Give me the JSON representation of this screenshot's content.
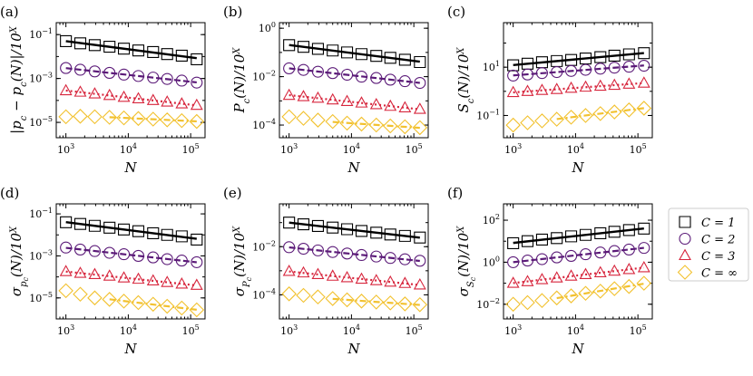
{
  "colors": {
    "C1": "#000000",
    "C2": "#5b1a78",
    "C3": "#d7263d",
    "Cinf": "#f2c12e"
  },
  "legend": {
    "placement": "right",
    "entries": [
      {
        "key": "C1",
        "label": "C = 1",
        "marker": "square"
      },
      {
        "key": "C2",
        "label": "C = 2",
        "marker": "circle"
      },
      {
        "key": "C3",
        "label": "C = 3",
        "marker": "triangle"
      },
      {
        "key": "Cinf",
        "label": "C = ∞",
        "marker": "diamond"
      }
    ]
  },
  "chart_data": [
    {
      "type": "scatter",
      "panel_label": "(a)",
      "ylabel": "|p_c − p_c(N)|/10^X",
      "xlabel": "N",
      "xscale": "log",
      "yscale": "log",
      "xlim": [
        700,
        170000
      ],
      "ylim": [
        2e-06,
        0.35
      ],
      "xticks": [
        1000,
        10000,
        100000
      ],
      "xtick_labels": [
        "10^3",
        "10^4",
        "10^5"
      ],
      "yticks": [
        0.1,
        0.001,
        1e-05
      ],
      "ytick_labels": [
        "10^-1",
        "10^-3",
        "10^-5"
      ],
      "x": [
        1000,
        1700,
        2900,
        5000,
        8500,
        14500,
        25000,
        42000,
        72000,
        125000
      ],
      "series": [
        {
          "key": "C1",
          "values": [
            0.05,
            0.04,
            0.033,
            0.028,
            0.023,
            0.019,
            0.016,
            0.013,
            0.011,
            0.0075
          ],
          "fit": true,
          "fit_style": "solid"
        },
        {
          "key": "C2",
          "values": [
            0.003,
            0.0025,
            0.0021,
            0.0018,
            0.0015,
            0.0013,
            0.0011,
            0.00095,
            0.0008,
            0.00065
          ],
          "fit": true,
          "fit_style": "dashed"
        },
        {
          "key": "C3",
          "values": [
            0.00028,
            0.00024,
            0.0002,
            0.00017,
            0.00014,
            0.00012,
            0.0001,
            8.5e-05,
            7e-05,
            6e-05
          ],
          "fit": true,
          "fit_style": "dotted"
        },
        {
          "key": "Cinf",
          "values": [
            1.8e-05,
            1.9e-05,
            1.8e-05,
            1.7e-05,
            1.6e-05,
            1.5e-05,
            1.4e-05,
            1.3e-05,
            1.2e-05,
            1.1e-05
          ],
          "fit": true,
          "fit_style": "dashdot",
          "fit_from": 5000
        }
      ]
    },
    {
      "type": "scatter",
      "panel_label": "(b)",
      "ylabel": "P_c(N)/10^X",
      "xlabel": "N",
      "xscale": "log",
      "yscale": "log",
      "xlim": [
        700,
        170000
      ],
      "ylim": [
        3e-05,
        1.7
      ],
      "xticks": [
        1000,
        10000,
        100000
      ],
      "xtick_labels": [
        "10^3",
        "10^4",
        "10^5"
      ],
      "yticks": [
        1,
        0.01,
        0.0001
      ],
      "ytick_labels": [
        "10^0",
        "10^-2",
        "10^-4"
      ],
      "x": [
        1000,
        1700,
        2900,
        5000,
        8500,
        14500,
        25000,
        42000,
        72000,
        125000
      ],
      "series": [
        {
          "key": "C1",
          "values": [
            0.2,
            0.17,
            0.14,
            0.12,
            0.1,
            0.085,
            0.072,
            0.06,
            0.05,
            0.04
          ],
          "fit": true,
          "fit_style": "solid"
        },
        {
          "key": "C2",
          "values": [
            0.022,
            0.019,
            0.016,
            0.014,
            0.012,
            0.01,
            0.0088,
            0.0075,
            0.0065,
            0.0055
          ],
          "fit": true,
          "fit_style": "dashed"
        },
        {
          "key": "C3",
          "values": [
            0.0017,
            0.0015,
            0.0013,
            0.0011,
            0.00095,
            0.00082,
            0.0007,
            0.0006,
            0.00052,
            0.00045
          ],
          "fit": true,
          "fit_style": "dotted"
        },
        {
          "key": "Cinf",
          "values": [
            0.00022,
            0.00019,
            0.00016,
            0.00014,
            0.00012,
            0.00011,
            0.0001,
            9.2e-05,
            8.5e-05,
            7.8e-05
          ],
          "fit": true,
          "fit_style": "dashdot",
          "fit_from": 5000
        }
      ]
    },
    {
      "type": "scatter",
      "panel_label": "(c)",
      "ylabel": "S_c(N)/10^X",
      "xlabel": "N",
      "xscale": "log",
      "yscale": "log",
      "xlim": [
        700,
        170000
      ],
      "ylim": [
        0.012,
        700
      ],
      "xticks": [
        1000,
        10000,
        100000
      ],
      "xtick_labels": [
        "10^3",
        "10^4",
        "10^5"
      ],
      "yticks": [
        10,
        0.1
      ],
      "ytick_labels": [
        "10^1",
        "10^-1"
      ],
      "x": [
        1000,
        1700,
        2900,
        5000,
        8500,
        14500,
        25000,
        42000,
        72000,
        125000
      ],
      "series": [
        {
          "key": "C1",
          "values": [
            12,
            14,
            16,
            18,
            20,
            23,
            26,
            30,
            34,
            38
          ],
          "fit": true,
          "fit_style": "solid"
        },
        {
          "key": "C2",
          "values": [
            4.5,
            5,
            5.7,
            6.3,
            7,
            7.8,
            8.7,
            9.6,
            10.5,
            11.5
          ],
          "fit": true,
          "fit_style": "dashed"
        },
        {
          "key": "C3",
          "values": [
            0.9,
            1,
            1.1,
            1.2,
            1.35,
            1.5,
            1.65,
            1.8,
            2,
            2.2
          ],
          "fit": true,
          "fit_style": "dotted"
        },
        {
          "key": "Cinf",
          "values": [
            0.04,
            0.05,
            0.06,
            0.07,
            0.085,
            0.1,
            0.12,
            0.14,
            0.17,
            0.2
          ],
          "fit": true,
          "fit_style": "dashdot",
          "fit_from": 5000
        }
      ]
    },
    {
      "type": "scatter",
      "panel_label": "(d)",
      "ylabel": "σ_{p_c}(N)/10^X",
      "xlabel": "N",
      "xscale": "log",
      "yscale": "log",
      "xlim": [
        700,
        170000
      ],
      "ylim": [
        1e-06,
        0.3
      ],
      "xticks": [
        1000,
        10000,
        100000
      ],
      "xtick_labels": [
        "10^3",
        "10^4",
        "10^5"
      ],
      "yticks": [
        0.1,
        0.001,
        1e-05
      ],
      "ytick_labels": [
        "10^-1",
        "10^-3",
        "10^-5"
      ],
      "x": [
        1000,
        1700,
        2900,
        5000,
        8500,
        14500,
        25000,
        42000,
        72000,
        125000
      ],
      "series": [
        {
          "key": "C1",
          "values": [
            0.04,
            0.033,
            0.027,
            0.022,
            0.018,
            0.015,
            0.012,
            0.01,
            0.0085,
            0.006
          ],
          "fit": true,
          "fit_style": "solid"
        },
        {
          "key": "C2",
          "values": [
            0.0025,
            0.002,
            0.0017,
            0.0014,
            0.0012,
            0.001,
            0.00085,
            0.0007,
            0.0006,
            0.0005
          ],
          "fit": true,
          "fit_style": "dashed"
        },
        {
          "key": "C3",
          "values": [
            0.00018,
            0.00015,
            0.00013,
            0.00011,
            9e-05,
            7.8e-05,
            6.5e-05,
            5.5e-05,
            4.6e-05,
            4e-05
          ],
          "fit": true,
          "fit_style": "dotted"
        },
        {
          "key": "Cinf",
          "values": [
            2.2e-05,
            1.5e-05,
            1e-05,
            8.5e-06,
            7e-06,
            6e-06,
            5e-06,
            4e-06,
            3.3e-06,
            2.7e-06
          ],
          "fit": true,
          "fit_style": "dashdot",
          "fit_from": 5000
        }
      ]
    },
    {
      "type": "scatter",
      "panel_label": "(e)",
      "ylabel": "σ_{P_c}(N)/10^X",
      "xlabel": "N",
      "xscale": "log",
      "yscale": "log",
      "xlim": [
        700,
        170000
      ],
      "ylim": [
        1e-05,
        0.6
      ],
      "xticks": [
        1000,
        10000,
        100000
      ],
      "xtick_labels": [
        "10^3",
        "10^4",
        "10^5"
      ],
      "yticks": [
        0.01,
        0.0001
      ],
      "ytick_labels": [
        "10^-2",
        "10^-4"
      ],
      "x": [
        1000,
        1700,
        2900,
        5000,
        8500,
        14500,
        25000,
        42000,
        72000,
        125000
      ],
      "series": [
        {
          "key": "C1",
          "values": [
            0.1,
            0.085,
            0.072,
            0.062,
            0.053,
            0.045,
            0.038,
            0.032,
            0.028,
            0.024
          ],
          "fit": true,
          "fit_style": "solid"
        },
        {
          "key": "C2",
          "values": [
            0.0095,
            0.0082,
            0.007,
            0.006,
            0.0052,
            0.0045,
            0.0039,
            0.0034,
            0.003,
            0.0026
          ],
          "fit": true,
          "fit_style": "dashed"
        },
        {
          "key": "C3",
          "values": [
            0.00095,
            0.00082,
            0.0007,
            0.0006,
            0.00052,
            0.00045,
            0.00039,
            0.00034,
            0.0003,
            0.00026
          ],
          "fit": true,
          "fit_style": "dotted"
        },
        {
          "key": "Cinf",
          "values": [
            0.00011,
            9.5e-05,
            8.2e-05,
            7e-05,
            6.2e-05,
            5.5e-05,
            5e-05,
            4.6e-05,
            4.2e-05,
            3.9e-05
          ],
          "fit": true,
          "fit_style": "dashdot",
          "fit_from": 5000
        }
      ]
    },
    {
      "type": "scatter",
      "panel_label": "(f)",
      "ylabel": "σ_{S_c}(N)/10^X",
      "xlabel": "N",
      "xscale": "log",
      "yscale": "log",
      "xlim": [
        700,
        170000
      ],
      "ylim": [
        0.002,
        600
      ],
      "xticks": [
        1000,
        10000,
        100000
      ],
      "xtick_labels": [
        "10^3",
        "10^4",
        "10^5"
      ],
      "yticks": [
        100,
        1,
        0.01
      ],
      "ytick_labels": [
        "10^2",
        "10^0",
        "10^-2"
      ],
      "x": [
        1000,
        1700,
        2900,
        5000,
        8500,
        14500,
        25000,
        42000,
        72000,
        125000
      ],
      "series": [
        {
          "key": "C1",
          "values": [
            8,
            10,
            12,
            14,
            17,
            20,
            24,
            28,
            34,
            40
          ],
          "fit": true,
          "fit_style": "solid"
        },
        {
          "key": "C2",
          "values": [
            1,
            1.2,
            1.4,
            1.7,
            2,
            2.4,
            2.9,
            3.4,
            4,
            4.8
          ],
          "fit": true,
          "fit_style": "dashed"
        },
        {
          "key": "C3",
          "values": [
            0.1,
            0.12,
            0.15,
            0.18,
            0.22,
            0.26,
            0.32,
            0.38,
            0.45,
            0.55
          ],
          "fit": true,
          "fit_style": "dotted"
        },
        {
          "key": "Cinf",
          "values": [
            0.01,
            0.012,
            0.015,
            0.02,
            0.025,
            0.033,
            0.042,
            0.055,
            0.07,
            0.1
          ],
          "fit": true,
          "fit_style": "dashdot",
          "fit_from": 5000
        }
      ]
    }
  ]
}
